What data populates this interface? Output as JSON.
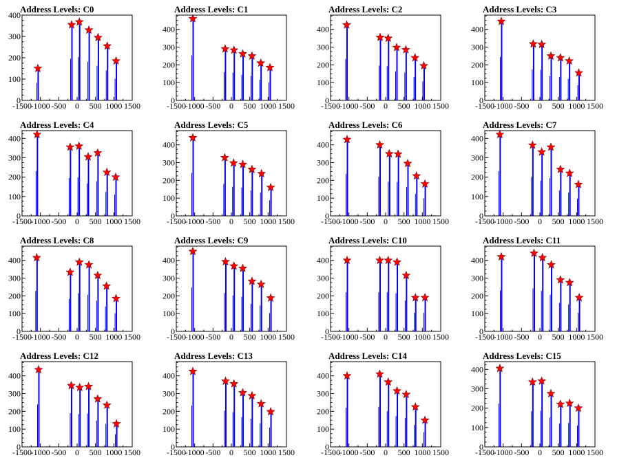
{
  "chart_data": {
    "type": "bar",
    "x_tick_labels": [
      "-1500",
      "-1000",
      "-500",
      "0",
      "500",
      "1000",
      "1500"
    ],
    "xlim": [
      -1500,
      1500
    ],
    "colors": {
      "bars": "#0000ff",
      "markers": "#ff0000",
      "frame": "#000000",
      "background": "#ffffff"
    },
    "marker_shape": "star",
    "panels": [
      {
        "title": "Address Levels: C0",
        "ylim": [
          0,
          400
        ],
        "y_ticks": [
          "0",
          "100",
          "200",
          "300",
          "400"
        ],
        "peaks_x": [
          -1070,
          -150,
          60,
          320,
          570,
          820,
          1060
        ],
        "peaks_y": [
          150,
          355,
          368,
          330,
          295,
          255,
          185
        ]
      },
      {
        "title": "Address Levels: C1",
        "ylim": [
          0,
          480
        ],
        "y_ticks": [
          "0",
          "100",
          "200",
          "300",
          "400"
        ],
        "peaks_x": [
          -1050,
          -170,
          70,
          310,
          560,
          800,
          1050
        ],
        "peaks_y": [
          460,
          290,
          283,
          262,
          250,
          210,
          185
        ]
      },
      {
        "title": "Address Levels: C2",
        "ylim": [
          0,
          480
        ],
        "y_ticks": [
          "0",
          "100",
          "200",
          "300",
          "400"
        ],
        "peaks_x": [
          -1060,
          -150,
          70,
          300,
          550,
          800,
          1040
        ],
        "peaks_y": [
          425,
          355,
          350,
          298,
          285,
          240,
          195
        ]
      },
      {
        "title": "Address Levels: C3",
        "ylim": [
          0,
          480
        ],
        "y_ticks": [
          "0",
          "100",
          "200",
          "300",
          "400"
        ],
        "peaks_x": [
          -1050,
          -180,
          50,
          300,
          560,
          800,
          1060
        ],
        "peaks_y": [
          445,
          318,
          315,
          250,
          240,
          222,
          155
        ]
      },
      {
        "title": "Address Levels: C4",
        "ylim": [
          0,
          440
        ],
        "y_ticks": [
          "0",
          "100",
          "200",
          "300",
          "400"
        ],
        "peaks_x": [
          -1090,
          -190,
          50,
          300,
          560,
          810,
          1050
        ],
        "peaks_y": [
          420,
          355,
          360,
          305,
          325,
          225,
          200
        ]
      },
      {
        "title": "Address Levels: C5",
        "ylim": [
          0,
          480
        ],
        "y_ticks": [
          "0",
          "100",
          "200",
          "300",
          "400"
        ],
        "peaks_x": [
          -1050,
          -180,
          60,
          310,
          560,
          820,
          1070
        ],
        "peaks_y": [
          440,
          328,
          298,
          290,
          262,
          238,
          160
        ]
      },
      {
        "title": "Address Levels: C6",
        "ylim": [
          0,
          480
        ],
        "y_ticks": [
          "0",
          "100",
          "200",
          "300",
          "400"
        ],
        "peaks_x": [
          -1050,
          -160,
          100,
          340,
          600,
          840,
          1070
        ],
        "peaks_y": [
          430,
          400,
          350,
          348,
          295,
          225,
          180
        ]
      },
      {
        "title": "Address Levels: C7",
        "ylim": [
          0,
          440
        ],
        "y_ticks": [
          "0",
          "100",
          "200",
          "300",
          "400"
        ],
        "peaks_x": [
          -1090,
          -200,
          50,
          300,
          560,
          810,
          1050
        ],
        "peaks_y": [
          420,
          365,
          330,
          355,
          240,
          220,
          162
        ]
      },
      {
        "title": "Address Levels: C8",
        "ylim": [
          0,
          480
        ],
        "y_ticks": [
          "0",
          "100",
          "200",
          "300",
          "400"
        ],
        "peaks_x": [
          -1100,
          -190,
          60,
          320,
          560,
          800,
          1060
        ],
        "peaks_y": [
          415,
          333,
          390,
          375,
          315,
          255,
          185
        ]
      },
      {
        "title": "Address Levels: C9",
        "ylim": [
          0,
          480
        ],
        "y_ticks": [
          "0",
          "100",
          "200",
          "300",
          "400"
        ],
        "peaks_x": [
          -1050,
          -160,
          70,
          310,
          560,
          810,
          1070
        ],
        "peaks_y": [
          450,
          392,
          368,
          355,
          282,
          265,
          188
        ]
      },
      {
        "title": "Address Levels: C10",
        "ylim": [
          0,
          480
        ],
        "y_ticks": [
          "0",
          "100",
          "200",
          "300",
          "400"
        ],
        "peaks_x": [
          -1050,
          -160,
          70,
          310,
          560,
          810,
          1070
        ],
        "peaks_y": [
          400,
          400,
          400,
          390,
          315,
          190,
          190
        ]
      },
      {
        "title": "Address Levels: C11",
        "ylim": [
          0,
          480
        ],
        "y_ticks": [
          "0",
          "100",
          "200",
          "300",
          "400"
        ],
        "peaks_x": [
          -1050,
          -160,
          70,
          310,
          560,
          810,
          1070
        ],
        "peaks_y": [
          420,
          440,
          415,
          375,
          290,
          275,
          190
        ]
      },
      {
        "title": "Address Levels: C12",
        "ylim": [
          0,
          480
        ],
        "y_ticks": [
          "0",
          "100",
          "200",
          "300",
          "400"
        ],
        "peaks_x": [
          -1050,
          -160,
          70,
          310,
          560,
          810,
          1070
        ],
        "peaks_y": [
          435,
          345,
          335,
          340,
          270,
          235,
          130
        ]
      },
      {
        "title": "Address Levels: C13",
        "ylim": [
          0,
          480
        ],
        "y_ticks": [
          "0",
          "100",
          "200",
          "300",
          "400"
        ],
        "peaks_x": [
          -1050,
          -160,
          70,
          310,
          560,
          810,
          1070
        ],
        "peaks_y": [
          425,
          370,
          355,
          305,
          288,
          243,
          198
        ]
      },
      {
        "title": "Address Levels: C14",
        "ylim": [
          0,
          480
        ],
        "y_ticks": [
          "0",
          "100",
          "200",
          "300",
          "400"
        ],
        "peaks_x": [
          -1050,
          -160,
          70,
          310,
          560,
          810,
          1070
        ],
        "peaks_y": [
          400,
          410,
          365,
          315,
          295,
          225,
          150
        ]
      },
      {
        "title": "Address Levels: C15",
        "ylim": [
          0,
          440
        ],
        "y_ticks": [
          "0",
          "100",
          "200",
          "300",
          "400"
        ],
        "peaks_x": [
          -1090,
          -200,
          50,
          300,
          560,
          810,
          1050
        ],
        "peaks_y": [
          405,
          335,
          340,
          275,
          220,
          225,
          200
        ]
      }
    ]
  }
}
